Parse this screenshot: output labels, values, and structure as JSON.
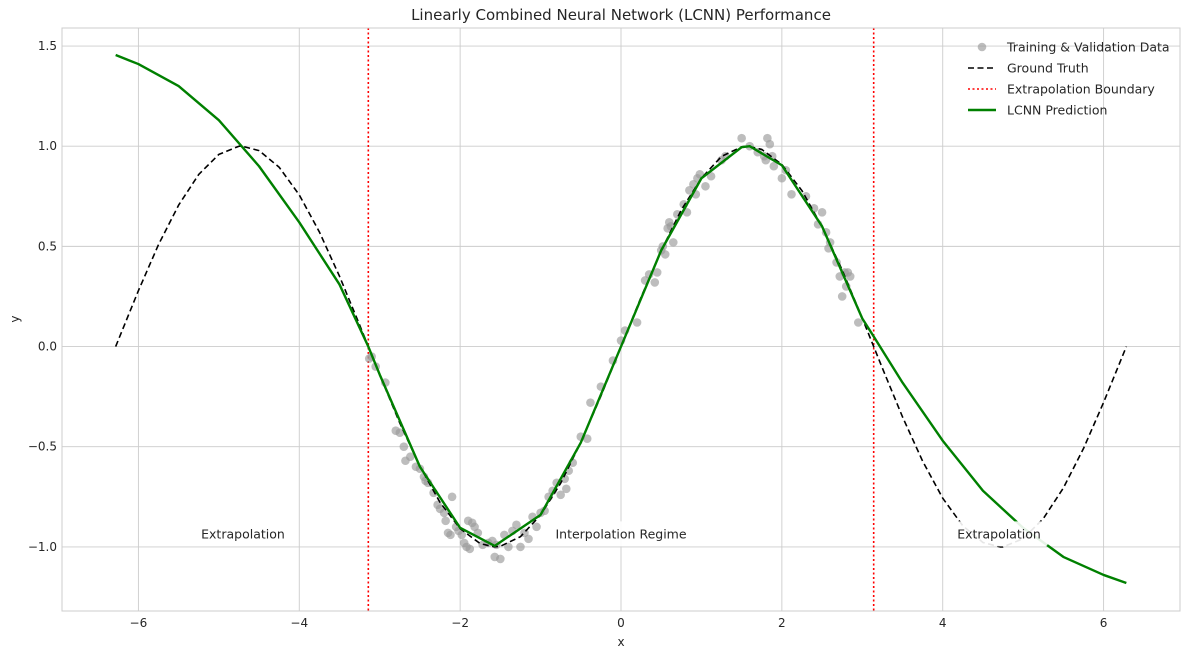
{
  "chart_data": {
    "type": "line",
    "title": "Linearly Combined Neural Network (LCNN) Performance",
    "xlabel": "x",
    "ylabel": "y",
    "xlim": [
      -6.95,
      6.95
    ],
    "ylim": [
      -1.32,
      1.59
    ],
    "xticks": [
      -6,
      -4,
      -2,
      0,
      2,
      4,
      6
    ],
    "yticks": [
      -1.0,
      -0.5,
      0.0,
      0.5,
      1.0,
      1.5
    ],
    "xtick_labels": [
      "−6",
      "−4",
      "−2",
      "0",
      "2",
      "4",
      "6"
    ],
    "ytick_labels": [
      "−1.0",
      "−0.5",
      "0.0",
      "0.5",
      "1.0",
      "1.5"
    ],
    "grid": true,
    "legend_position": "top-right",
    "colors": {
      "training_points": "#999999",
      "ground_truth": "#000000",
      "boundary": "#ff0000",
      "prediction": "#008000",
      "grid": "#cccccc"
    },
    "legend": [
      {
        "key": "training",
        "label": "Training & Validation Data"
      },
      {
        "key": "truth",
        "label": "Ground Truth"
      },
      {
        "key": "boundary",
        "label": "Extrapolation Boundary"
      },
      {
        "key": "prediction",
        "label": "LCNN Prediction"
      }
    ],
    "boundaries": [
      -3.1416,
      3.1416
    ],
    "annotations": [
      {
        "text": "Extrapolation",
        "x": -4.7,
        "y": -0.935
      },
      {
        "text": "Interpolation Regime",
        "x": 0.0,
        "y": -0.935
      },
      {
        "text": "Extrapolation",
        "x": 4.7,
        "y": -0.935
      }
    ],
    "series": [
      {
        "name": "Ground Truth",
        "style": "dashed",
        "x": [
          -6.283,
          -6.0,
          -5.75,
          -5.5,
          -5.25,
          -5.0,
          -4.75,
          -4.712,
          -4.5,
          -4.25,
          -4.0,
          -3.75,
          -3.5,
          -3.25,
          -3.0,
          -2.75,
          -2.5,
          -2.25,
          -2.0,
          -1.75,
          -1.571,
          -1.5,
          -1.25,
          -1.0,
          -0.75,
          -0.5,
          -0.25,
          0.0,
          0.25,
          0.5,
          0.75,
          1.0,
          1.25,
          1.5,
          1.571,
          1.75,
          2.0,
          2.25,
          2.5,
          2.75,
          3.0,
          3.25,
          3.5,
          3.75,
          4.0,
          4.25,
          4.5,
          4.712,
          4.75,
          5.0,
          5.25,
          5.5,
          5.75,
          6.0,
          6.283
        ],
        "y": [
          0.0,
          0.279,
          0.509,
          0.706,
          0.859,
          0.959,
          1.0,
          1.0,
          0.978,
          0.895,
          0.757,
          0.572,
          0.351,
          0.108,
          -0.141,
          -0.382,
          -0.598,
          -0.778,
          -0.909,
          -0.984,
          -1.0,
          -0.997,
          -0.949,
          -0.841,
          -0.682,
          -0.479,
          -0.247,
          0.0,
          0.247,
          0.479,
          0.682,
          0.841,
          0.949,
          0.997,
          1.0,
          0.984,
          0.909,
          0.778,
          0.598,
          0.382,
          0.141,
          -0.108,
          -0.351,
          -0.572,
          -0.757,
          -0.895,
          -0.978,
          -1.0,
          -1.0,
          -0.959,
          -0.859,
          -0.706,
          -0.509,
          -0.279,
          0.0
        ]
      },
      {
        "name": "LCNN Prediction",
        "style": "solid",
        "x": [
          -6.283,
          -6.0,
          -5.5,
          -5.0,
          -4.5,
          -4.0,
          -3.5,
          -3.142,
          -3.0,
          -2.5,
          -2.0,
          -1.57,
          -1.0,
          -0.5,
          0.0,
          0.5,
          1.0,
          1.5,
          1.6,
          2.0,
          2.5,
          3.0,
          3.142,
          3.5,
          4.0,
          4.5,
          5.0,
          5.5,
          6.0,
          6.283
        ],
        "y": [
          1.455,
          1.41,
          1.3,
          1.13,
          0.9,
          0.62,
          0.31,
          0.0,
          -0.14,
          -0.6,
          -0.905,
          -0.995,
          -0.84,
          -0.48,
          0.0,
          0.48,
          0.84,
          0.995,
          1.0,
          0.905,
          0.6,
          0.14,
          0.05,
          -0.18,
          -0.47,
          -0.72,
          -0.905,
          -1.05,
          -1.14,
          -1.18
        ]
      }
    ],
    "scatter": {
      "name": "Training & Validation Data",
      "x": [
        -3.13,
        -3.1,
        -3.05,
        -2.93,
        -2.8,
        -2.75,
        -2.7,
        -2.68,
        -2.62,
        -2.55,
        -2.5,
        -2.45,
        -2.43,
        -2.4,
        -2.33,
        -2.28,
        -2.25,
        -2.2,
        -2.18,
        -2.15,
        -2.12,
        -2.1,
        -2.05,
        -2.02,
        -1.98,
        -1.95,
        -1.92,
        -1.9,
        -1.88,
        -1.85,
        -1.82,
        -1.78,
        -1.72,
        -1.65,
        -1.6,
        -1.57,
        -1.55,
        -1.5,
        -1.45,
        -1.4,
        -1.35,
        -1.3,
        -1.25,
        -1.2,
        -1.15,
        -1.1,
        -1.05,
        -1.0,
        -0.95,
        -0.9,
        -0.85,
        -0.8,
        -0.75,
        -0.7,
        -0.68,
        -0.65,
        -0.6,
        -0.5,
        -0.42,
        -0.38,
        -0.25,
        -0.1,
        0.0,
        0.05,
        0.2,
        0.3,
        0.35,
        0.42,
        0.45,
        0.5,
        0.52,
        0.55,
        0.58,
        0.6,
        0.62,
        0.65,
        0.7,
        0.78,
        0.82,
        0.85,
        0.9,
        0.93,
        0.95,
        0.98,
        1.05,
        1.12,
        1.25,
        1.3,
        1.5,
        1.6,
        1.7,
        1.78,
        1.8,
        1.82,
        1.85,
        1.88,
        1.9,
        2.0,
        2.05,
        2.12,
        2.3,
        2.4,
        2.45,
        2.5,
        2.55,
        2.58,
        2.6,
        2.68,
        2.72,
        2.75,
        2.78,
        2.8,
        2.82,
        2.85,
        2.95
      ],
      "y": [
        -0.06,
        -0.05,
        -0.1,
        -0.18,
        -0.42,
        -0.43,
        -0.5,
        -0.57,
        -0.55,
        -0.6,
        -0.61,
        -0.65,
        -0.67,
        -0.68,
        -0.73,
        -0.79,
        -0.81,
        -0.83,
        -0.87,
        -0.93,
        -0.94,
        -0.75,
        -0.9,
        -0.92,
        -0.94,
        -0.98,
        -1.0,
        -0.87,
        -1.01,
        -0.88,
        -0.9,
        -0.93,
        -0.99,
        -0.98,
        -0.97,
        -1.05,
        -0.99,
        -1.06,
        -0.94,
        -1.0,
        -0.92,
        -0.89,
        -1.0,
        -0.93,
        -0.96,
        -0.85,
        -0.9,
        -0.83,
        -0.82,
        -0.75,
        -0.72,
        -0.68,
        -0.74,
        -0.66,
        -0.71,
        -0.62,
        -0.58,
        -0.45,
        -0.46,
        -0.28,
        -0.2,
        -0.07,
        0.03,
        0.08,
        0.12,
        0.33,
        0.36,
        0.32,
        0.37,
        0.48,
        0.5,
        0.46,
        0.59,
        0.62,
        0.6,
        0.52,
        0.66,
        0.71,
        0.67,
        0.78,
        0.81,
        0.76,
        0.84,
        0.86,
        0.8,
        0.85,
        0.93,
        0.95,
        1.04,
        1.0,
        0.97,
        0.95,
        0.93,
        1.04,
        1.01,
        0.95,
        0.9,
        0.84,
        0.88,
        0.76,
        0.75,
        0.69,
        0.61,
        0.67,
        0.57,
        0.49,
        0.52,
        0.42,
        0.35,
        0.25,
        0.37,
        0.3,
        0.37,
        0.35,
        0.12
      ]
    }
  }
}
